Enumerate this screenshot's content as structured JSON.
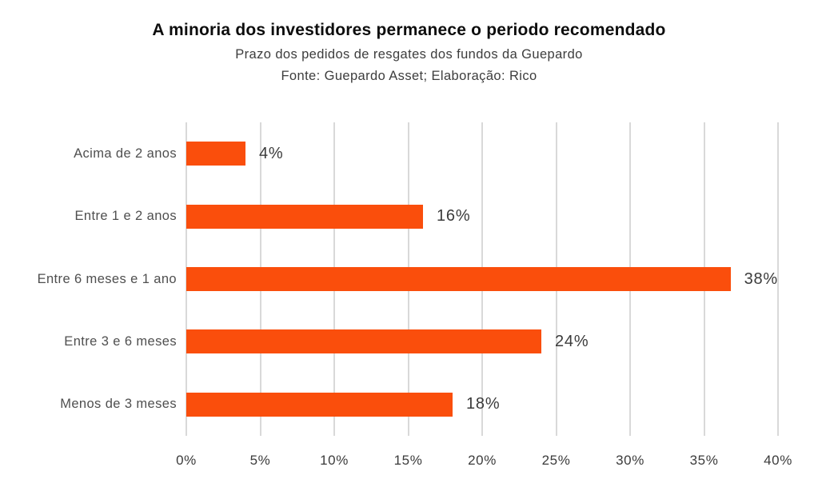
{
  "chart_data": {
    "type": "bar",
    "orientation": "horizontal",
    "title": "A minoria dos investidores permanece o periodo recomendado",
    "subtitle": "Prazo dos pedidos de resgates dos fundos da Guepardo",
    "source": "Fonte: Guepardo Asset; Elaboração: Rico",
    "categories": [
      "Acima de 2 anos",
      "Entre 1 e 2 anos",
      "Entre 6 meses e 1 ano",
      "Entre 3 e 6 meses",
      "Menos de 3 meses"
    ],
    "values": [
      4,
      16,
      38,
      24,
      18
    ],
    "value_labels": [
      "4%",
      "16%",
      "38%",
      "24%",
      "18%"
    ],
    "x_ticks": [
      0,
      5,
      10,
      15,
      20,
      25,
      30,
      35,
      40
    ],
    "x_tick_labels": [
      "0%",
      "5%",
      "10%",
      "15%",
      "20%",
      "25%",
      "30%",
      "35%",
      "40%"
    ],
    "xlim": [
      0,
      40
    ],
    "grid": true,
    "legend": false,
    "bar_color": "#fa4e0c",
    "gridline_color": "#d9d9d9"
  }
}
